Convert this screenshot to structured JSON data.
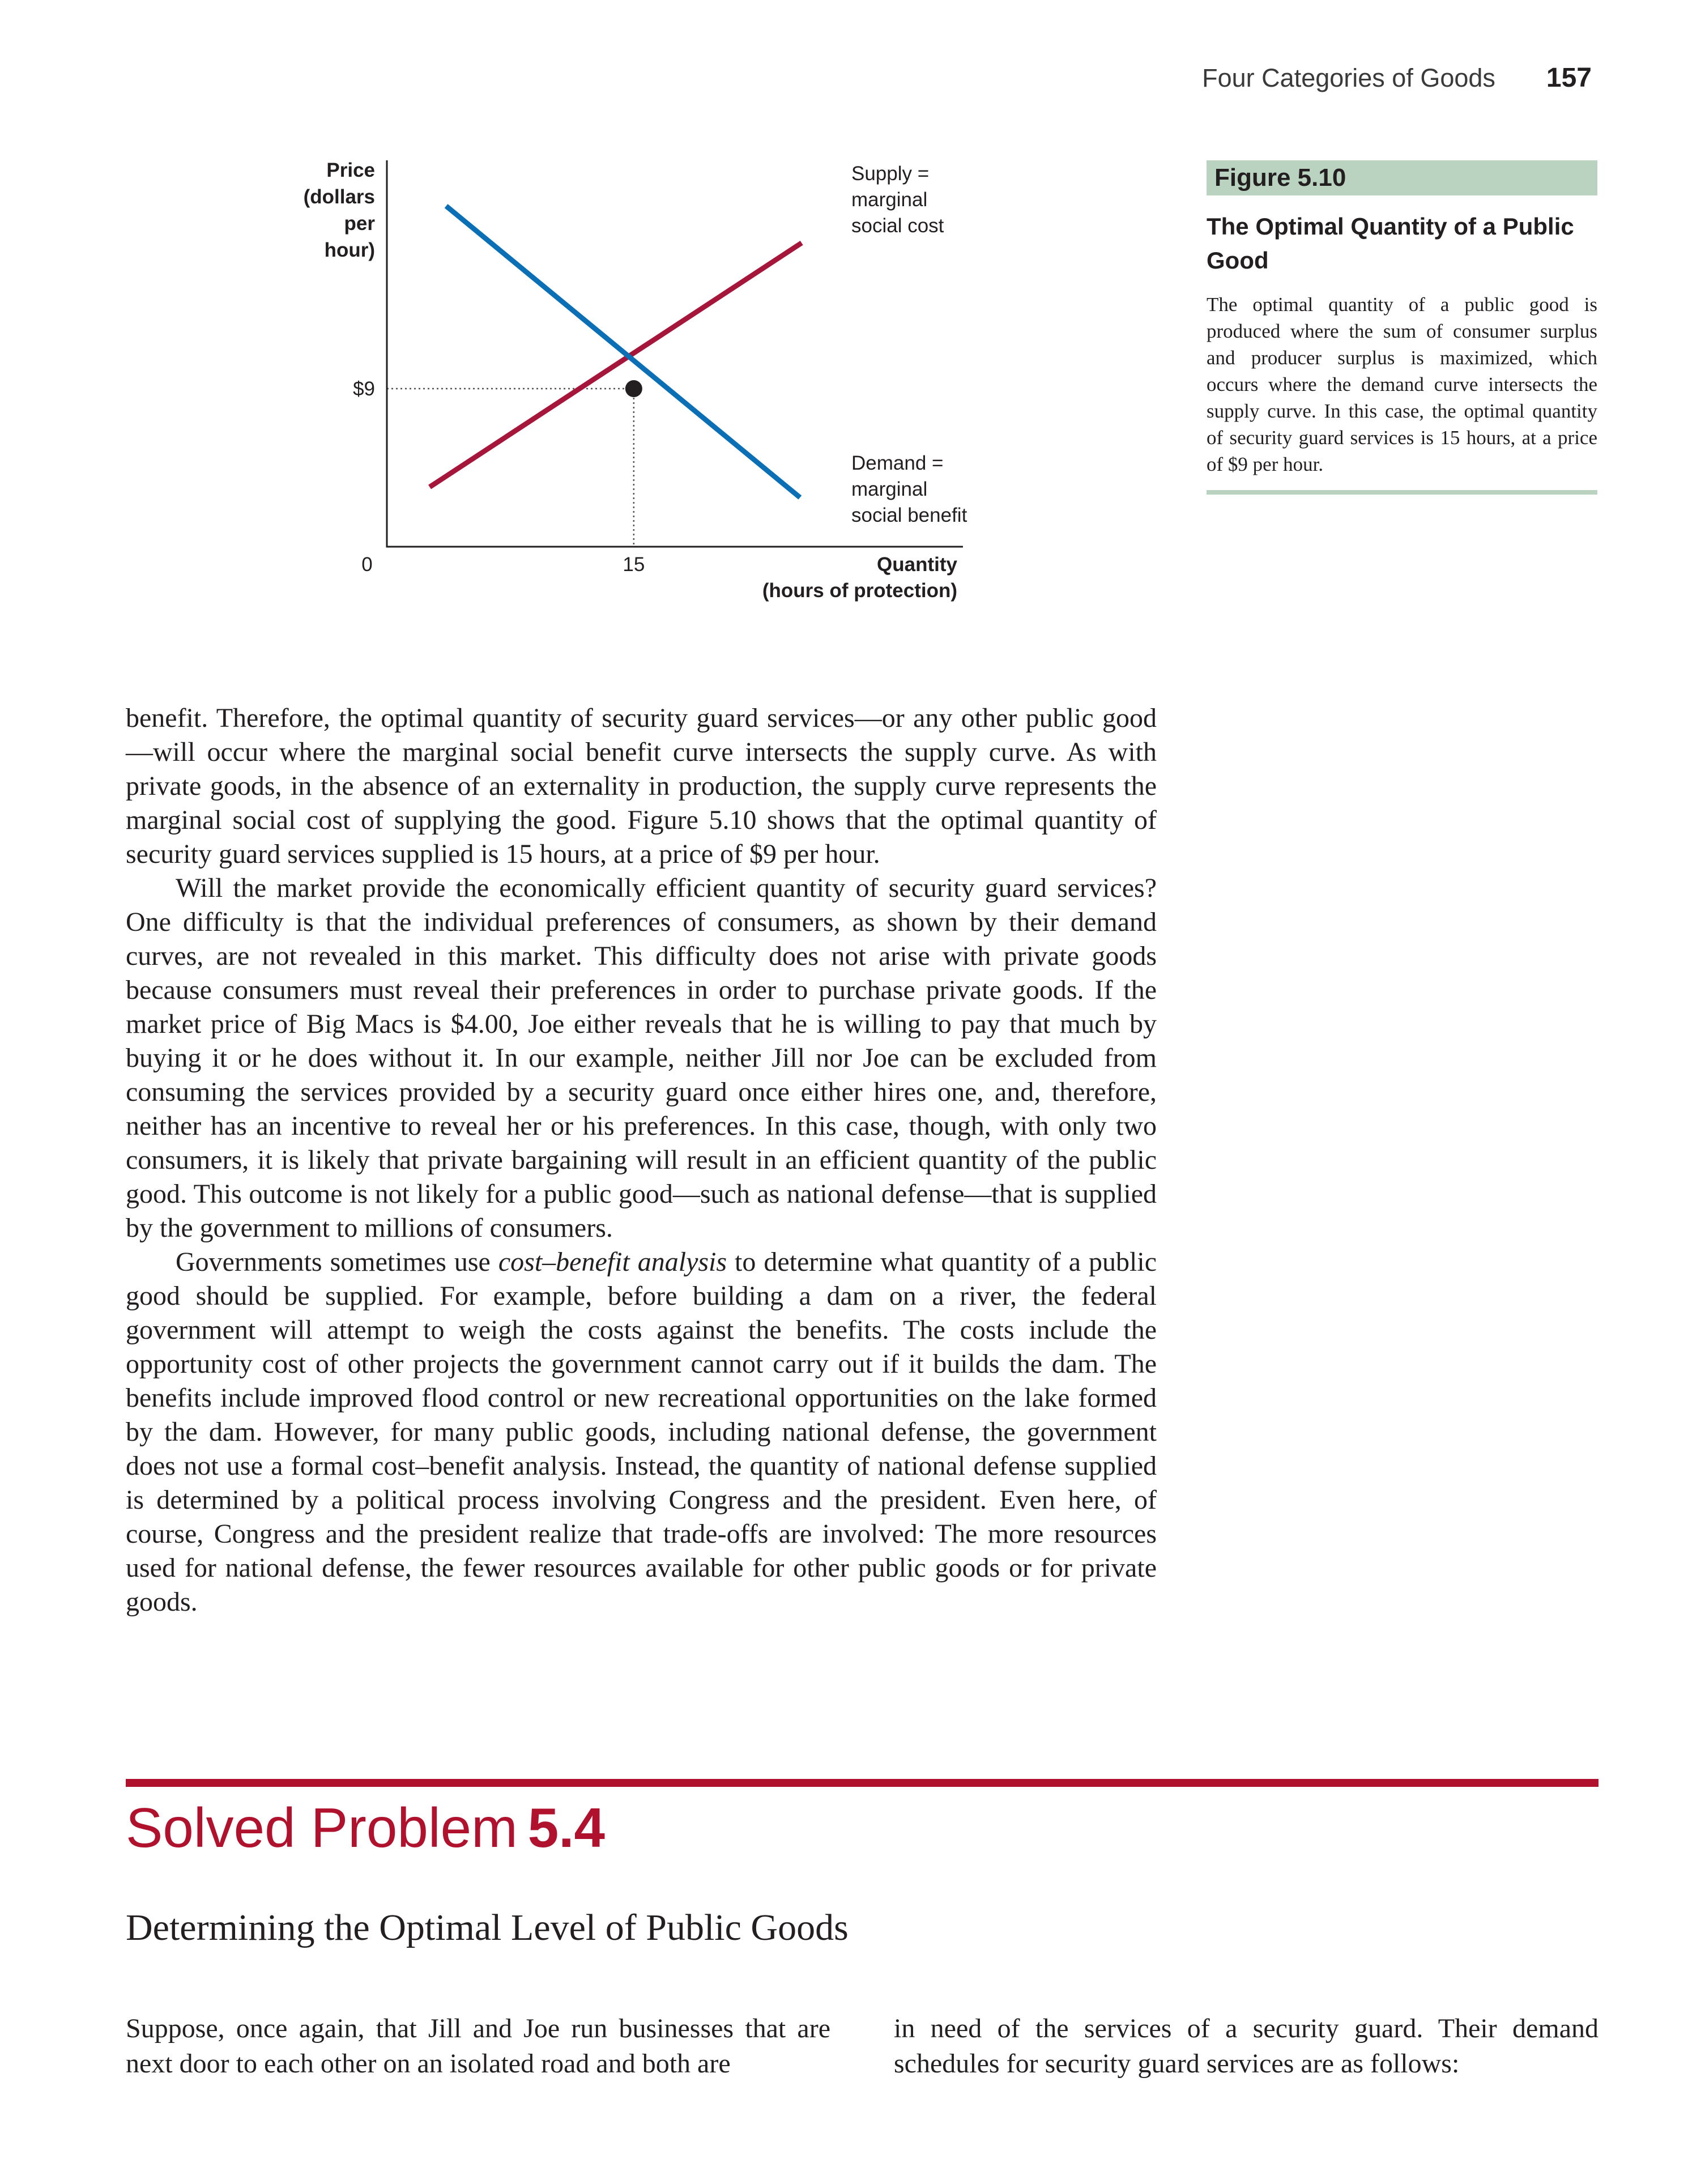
{
  "running_head": {
    "section": "Four Categories of Goods",
    "page_number": "157"
  },
  "colors": {
    "supply": "#a5163a",
    "demand": "#0a6fb5",
    "accent": "#b0122e",
    "caption_band": "#b9d3c0"
  },
  "figure": {
    "label": "Figure 5.10",
    "title": "The Optimal Quantity of a Public Good",
    "caption": "The optimal quantity of a public good is produced where the sum of consumer surplus and producer surplus is maximized, which occurs where the demand curve intersects the supply curve. In this case, the optimal quantity of security guard services is 15 hours, at a price of $9 per hour."
  },
  "chart_data": {
    "type": "line",
    "ylabel_lines": [
      "Price",
      "(dollars",
      "per",
      "hour)"
    ],
    "xlabel_lines": [
      "Quantity",
      "(hours of protection)"
    ],
    "origin_label": "0",
    "x_ticks": [
      {
        "value": 15,
        "label": "15"
      }
    ],
    "y_ticks": [
      {
        "value": 9,
        "label": "$9"
      }
    ],
    "xlim": [
      0,
      35
    ],
    "ylim": [
      0,
      22
    ],
    "series": [
      {
        "name": "Supply = marginal social cost",
        "label_lines": [
          "Supply =",
          "marginal",
          "social cost"
        ],
        "x": [
          2.6,
          25.2
        ],
        "y": [
          3.4,
          17.3
        ]
      },
      {
        "name": "Demand = marginal social benefit",
        "label_lines": [
          "Demand =",
          "marginal",
          "social benefit"
        ],
        "x": [
          3.6,
          25.1
        ],
        "y": [
          19.4,
          2.8
        ]
      }
    ],
    "equilibrium": {
      "x": 15,
      "y": 9
    }
  },
  "body_paragraphs": [
    {
      "runs": [
        {
          "text": "benefit. Therefore, the optimal quantity of security guard services—or any other public good—will occur where the marginal social benefit curve intersects the supply curve. As with private goods, in the absence of an externality in production, the supply curve represents the marginal social cost of supplying the good. Figure 5.10 shows that the optimal quantity of security guard services supplied is 15 hours, at a price of $9 per hour."
        }
      ]
    },
    {
      "runs": [
        {
          "text": "Will the market provide the economically efficient quantity of security guard services? One difficulty is that the individual preferences of consumers, as shown by their demand curves, are not revealed in this market. This difficulty does not arise with private goods because consumers must reveal their preferences in order to purchase private goods. If the market price of Big Macs is $4.00, Joe either reveals that he is willing to pay that much by buying it or he does without it. In our example, neither Jill nor Joe can be excluded from consuming the services provided by a security guard once either hires one, and, therefore, neither has an incentive to reveal her or his preferences. In this case, though, with only two consumers, it is likely that private bargaining will result in an efficient quantity of the public good. This outcome is not likely for a public good—such as national defense—that is supplied by the government to millions of consumers."
        }
      ]
    },
    {
      "runs": [
        {
          "text": "Governments sometimes use "
        },
        {
          "text": "cost–benefit analysis",
          "italic": true
        },
        {
          "text": " to determine what quantity of a public good should be supplied. For example, before building a dam on a river, the federal government will attempt to weigh the costs against the benefits. The costs include the opportunity cost of other projects the government cannot carry out if it builds the dam. The benefits include improved flood control or new recreational opportunities on the lake formed by the dam. However, for many public goods, including national defense, the government does not use a formal cost–benefit analysis. Instead, the quantity of national defense supplied is determined by a political process involving Congress and the president. Even here, of course, Congress and the president realize that trade-offs are involved: The more resources used for national defense, the fewer resources available for other public goods or for private goods."
        }
      ]
    }
  ],
  "solved_problem": {
    "label": "Solved Problem",
    "number": "5.4",
    "subtitle": "Determining the Optimal Level of Public Goods",
    "text_left": "Suppose, once again, that Jill and Joe run businesses that are next door to each other on an isolated road and both are",
    "text_right": "in need of the services of a security guard. Their demand schedules for security guard services are as follows:"
  }
}
